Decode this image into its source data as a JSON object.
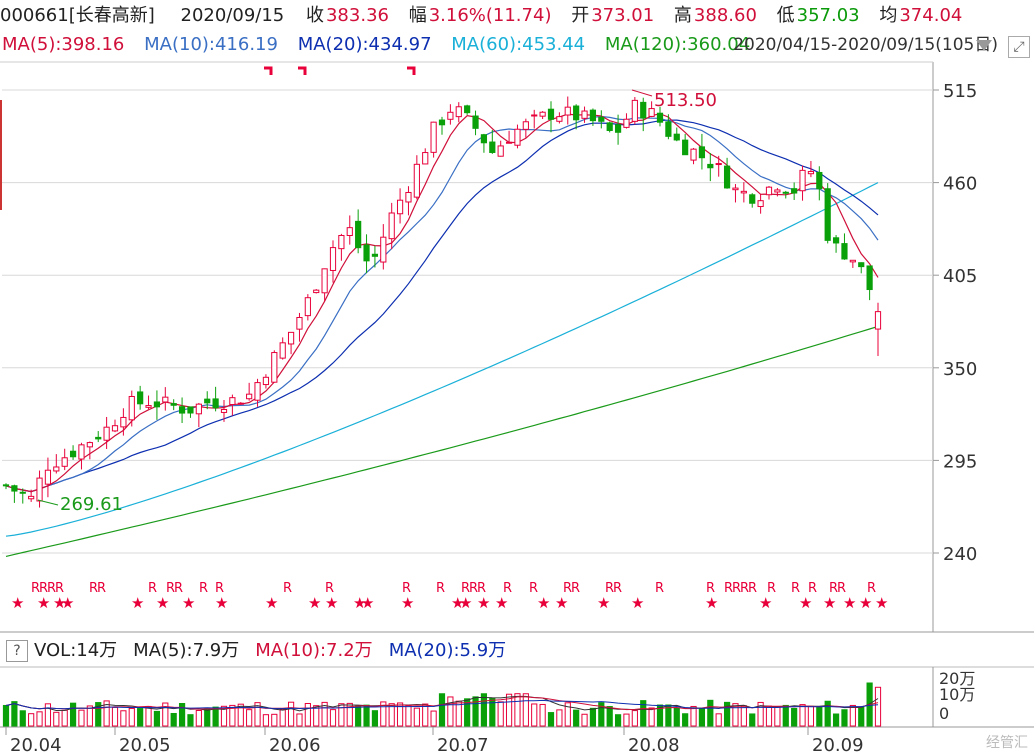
{
  "quote": {
    "code_name": "000661[长春高新]",
    "date": "2020/09/15",
    "close_label": "收",
    "close": "383.36",
    "change_label": "幅",
    "change": "3.16%(11.74)",
    "open_label": "开",
    "open": "373.01",
    "high_label": "高",
    "high": "388.60",
    "low_label": "低",
    "low": "357.03",
    "avg_label": "均",
    "avg": "374.04"
  },
  "ma": {
    "ma5": "MA(5):398.16",
    "ma10": "MA(10):416.19",
    "ma20": "MA(20):434.97",
    "ma60": "MA(60):453.44",
    "ma120": "MA(120):360.04",
    "range": "2020/04/15-2020/09/15(105日)"
  },
  "colors": {
    "up": "#e8003a",
    "down": "#0aa00a",
    "ma5": "#d0103a",
    "ma10": "#3a6fc4",
    "ma20": "#0d2fb0",
    "ma60": "#1ab0d8",
    "ma120": "#1a9a1a",
    "grid": "#d8d8d8"
  },
  "volume": {
    "vol": "VOL:14万",
    "ma5": "MA(5):7.9万",
    "ma10": "MA(10):7.2万",
    "ma20": "MA(20):5.9万",
    "axis_labels": [
      "20万",
      "10万",
      "0"
    ]
  },
  "chart_data": {
    "type": "candlestick",
    "y_ticks": [
      515,
      460,
      405,
      350,
      295,
      240
    ],
    "x_labels": [
      "20.04",
      "20.05",
      "20.06",
      "20.07",
      "20.08",
      "20.09"
    ],
    "annotations": [
      {
        "text": "513.50",
        "type": "high"
      },
      {
        "text": "269.61",
        "type": "low"
      }
    ],
    "signal_letter": "R",
    "signal_star": "★",
    "ylim": [
      225,
      525
    ]
  },
  "watermark": "经管汇"
}
